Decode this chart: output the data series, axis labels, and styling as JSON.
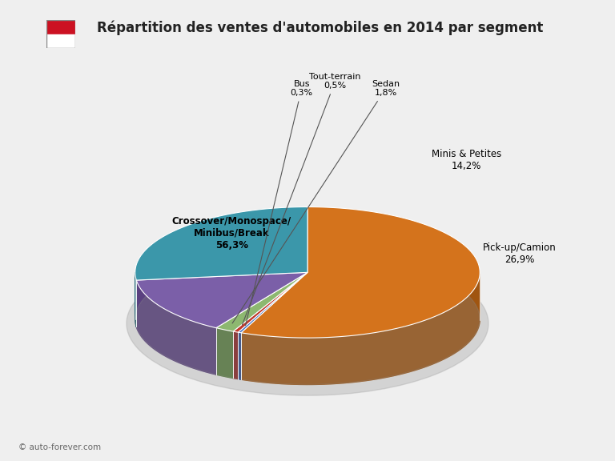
{
  "title": "Répartition des ventes d'automobiles en 2014 par segment",
  "segments": [
    {
      "label": "Crossover/Monospace/\nMinibus/Break",
      "value": 56.3,
      "color": "#D4731C",
      "side_color": "#A05510",
      "pct": "56,3%"
    },
    {
      "label": "Bus",
      "value": 0.3,
      "color": "#4472C4",
      "side_color": "#2A4A90",
      "pct": "0,3%"
    },
    {
      "label": "Tout-terrain",
      "value": 0.5,
      "color": "#C0392B",
      "side_color": "#8B2020",
      "pct": "0,5%"
    },
    {
      "label": "Sedan",
      "value": 1.8,
      "color": "#8DB870",
      "side_color": "#5A8040",
      "pct": "1,8%"
    },
    {
      "label": "Minis & Petites",
      "value": 14.2,
      "color": "#7B5FA8",
      "side_color": "#5A4080",
      "pct": "14,2%"
    },
    {
      "label": "Pick-up/Camion",
      "value": 26.9,
      "color": "#3B97AA",
      "side_color": "#1A6070",
      "pct": "26,9%"
    }
  ],
  "background_color": "#EFEFEF",
  "copyright": "© auto-forever.com",
  "start_angle": 90
}
